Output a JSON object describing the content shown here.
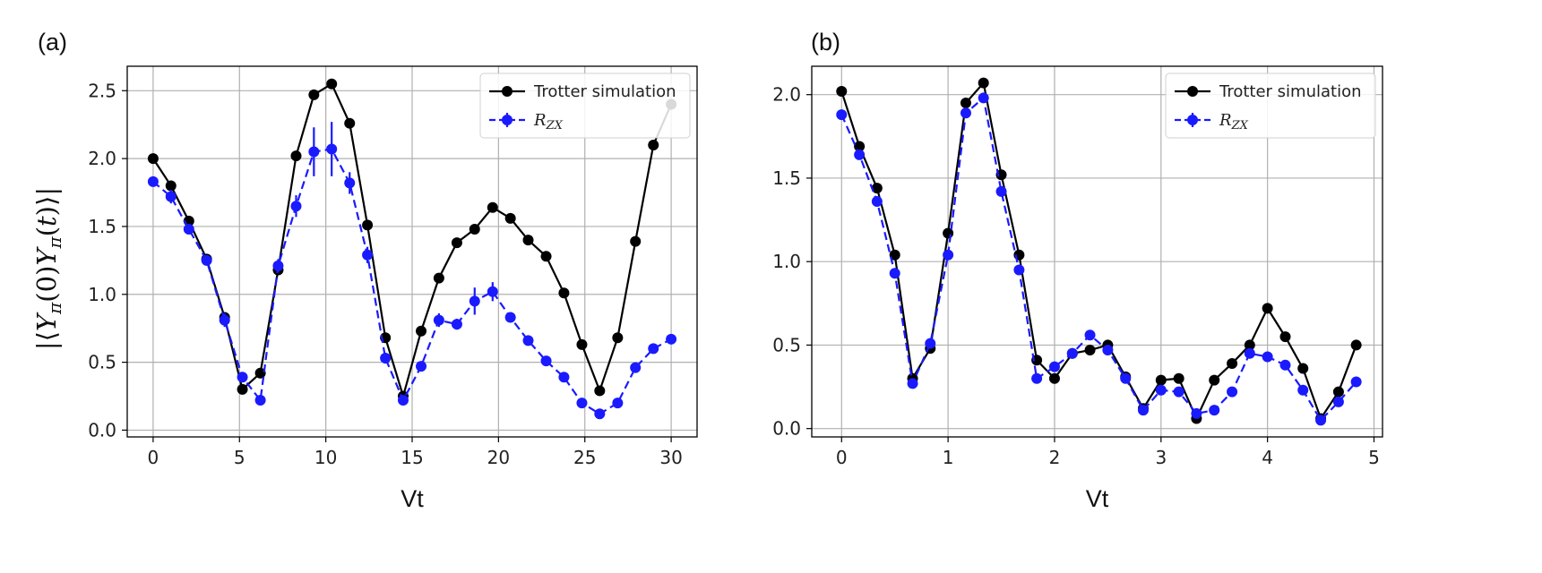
{
  "chart_data": [
    {
      "type": "line",
      "panel_label": "(a)",
      "xlabel": "Vt",
      "ylabel": "|⟨Yπ(0)Yπ(t)⟩|",
      "xlim": [
        -1.5,
        31.5
      ],
      "ylim": [
        -0.05,
        2.68
      ],
      "xticks": [
        0,
        5,
        10,
        15,
        20,
        25,
        30
      ],
      "yticks": [
        0.0,
        0.5,
        1.0,
        1.5,
        2.0,
        2.5
      ],
      "xtick_labels": [
        "0",
        "5",
        "10",
        "15",
        "20",
        "25",
        "30"
      ],
      "ytick_labels": [
        "0.0",
        "0.5",
        "1.0",
        "1.5",
        "2.0",
        "2.5"
      ],
      "grid": true,
      "legend_position": "top-right",
      "series": [
        {
          "name": "Trotter simulation",
          "color": "#000000",
          "style": "solid",
          "x": [
            0,
            1.03,
            2.07,
            3.1,
            4.14,
            5.17,
            6.21,
            7.24,
            8.28,
            9.31,
            10.34,
            11.38,
            12.41,
            13.45,
            14.48,
            15.52,
            16.55,
            17.59,
            18.62,
            19.66,
            20.69,
            21.72,
            22.76,
            23.79,
            24.83,
            25.86,
            26.9,
            27.93,
            28.97,
            30.0
          ],
          "y": [
            2.0,
            1.8,
            1.54,
            1.26,
            0.83,
            0.3,
            0.42,
            1.18,
            2.02,
            2.47,
            2.55,
            2.26,
            1.51,
            0.68,
            0.25,
            0.73,
            1.12,
            1.38,
            1.48,
            1.64,
            1.56,
            1.4,
            1.28,
            1.01,
            0.63,
            0.29,
            0.68,
            1.39,
            2.1,
            2.4
          ]
        },
        {
          "name": "R_zx",
          "color": "#1a1aff",
          "style": "dashed",
          "x": [
            0,
            1.03,
            2.07,
            3.1,
            4.14,
            5.17,
            6.21,
            7.24,
            8.28,
            9.31,
            10.34,
            11.38,
            12.41,
            13.45,
            14.48,
            15.52,
            16.55,
            17.59,
            18.62,
            19.66,
            20.69,
            21.72,
            22.76,
            23.79,
            24.83,
            25.86,
            26.9,
            27.93,
            28.97,
            30.0
          ],
          "y": [
            1.83,
            1.72,
            1.48,
            1.25,
            0.81,
            0.39,
            0.22,
            1.21,
            1.65,
            2.05,
            2.07,
            1.82,
            1.29,
            0.53,
            0.22,
            0.47,
            0.81,
            0.78,
            0.95,
            1.02,
            0.83,
            0.66,
            0.51,
            0.39,
            0.2,
            0.12,
            0.2,
            0.46,
            0.6,
            0.67
          ],
          "yerr": [
            0.03,
            0.05,
            0.03,
            0.03,
            0.05,
            0.03,
            0.03,
            0.05,
            0.08,
            0.18,
            0.2,
            0.08,
            0.06,
            0.04,
            0.03,
            0.03,
            0.05,
            0.04,
            0.1,
            0.07,
            0.03,
            0.02,
            0.02,
            0.02,
            0.02,
            0.02,
            0.02,
            0.02,
            0.03,
            0.02
          ]
        }
      ]
    },
    {
      "type": "line",
      "panel_label": "(b)",
      "xlabel": "Vt",
      "ylabel": "",
      "xlim": [
        -0.28,
        5.08
      ],
      "ylim": [
        -0.05,
        2.17
      ],
      "xticks": [
        0,
        1,
        2,
        3,
        4,
        5
      ],
      "yticks": [
        0.0,
        0.5,
        1.0,
        1.5,
        2.0
      ],
      "xtick_labels": [
        "0",
        "1",
        "2",
        "3",
        "4",
        "5"
      ],
      "ytick_labels": [
        "0.0",
        "0.5",
        "1.0",
        "1.5",
        "2.0"
      ],
      "grid": true,
      "legend_position": "top-right",
      "series": [
        {
          "name": "Trotter simulation",
          "color": "#000000",
          "style": "solid",
          "x": [
            0,
            0.167,
            0.333,
            0.5,
            0.667,
            0.833,
            1.0,
            1.167,
            1.333,
            1.5,
            1.667,
            1.833,
            2.0,
            2.167,
            2.333,
            2.5,
            2.667,
            2.833,
            3.0,
            3.167,
            3.333,
            3.5,
            3.667,
            3.833,
            4.0,
            4.167,
            4.333,
            4.5,
            4.667,
            4.833
          ],
          "y": [
            2.02,
            1.69,
            1.44,
            1.04,
            0.3,
            0.48,
            1.17,
            1.95,
            2.07,
            1.52,
            1.04,
            0.41,
            0.3,
            0.45,
            0.47,
            0.5,
            0.31,
            0.12,
            0.29,
            0.3,
            0.06,
            0.29,
            0.39,
            0.5,
            0.72,
            0.55,
            0.36,
            0.06,
            0.22,
            0.5
          ]
        },
        {
          "name": "R_zx",
          "color": "#1a1aff",
          "style": "dashed",
          "x": [
            0,
            0.167,
            0.333,
            0.5,
            0.667,
            0.833,
            1.0,
            1.167,
            1.333,
            1.5,
            1.667,
            1.833,
            2.0,
            2.167,
            2.333,
            2.5,
            2.667,
            2.833,
            3.0,
            3.167,
            3.333,
            3.5,
            3.667,
            3.833,
            4.0,
            4.167,
            4.333,
            4.5,
            4.667,
            4.833
          ],
          "y": [
            1.88,
            1.64,
            1.36,
            0.93,
            0.27,
            0.51,
            1.04,
            1.89,
            1.98,
            1.42,
            0.95,
            0.3,
            0.37,
            0.45,
            0.56,
            0.47,
            0.3,
            0.11,
            0.23,
            0.22,
            0.09,
            0.11,
            0.22,
            0.45,
            0.43,
            0.38,
            0.23,
            0.05,
            0.16,
            0.28
          ]
        }
      ]
    }
  ],
  "legend": {
    "trotter_label": "Trotter simulation",
    "rzx_label": "R",
    "rzx_sub": "ZX"
  },
  "figure_labels": {
    "a": "(a)",
    "b": "(b)"
  }
}
